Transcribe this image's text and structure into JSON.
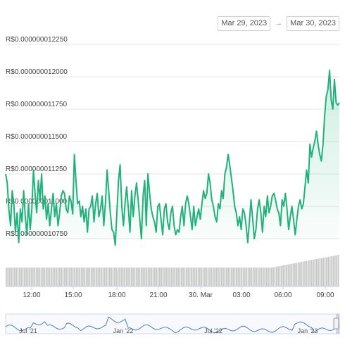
{
  "range": {
    "from": "Mar 29, 2023",
    "to": "Mar 30, 2023",
    "arrow": "→"
  },
  "colors": {
    "line": "#1fb27a",
    "area": "#1fb27a",
    "volume": "#c8c8c8",
    "navigator": "#4a7dc4",
    "grid": "#e6e6e6"
  },
  "chart_data": {
    "type": "area",
    "currency_prefix": "R$",
    "y_ticks": [
      "R$0.000000012250",
      "R$0.000000012000",
      "R$0.000000011750",
      "R$0.000000011500",
      "R$0.000000011250",
      "R$0.000000011000",
      "R$0.000000010750"
    ],
    "ylim": [
      1.075e-08,
      1.225e-08
    ],
    "x_ticks": [
      "12:00",
      "15:00",
      "18:00",
      "21:00",
      "30. Mar",
      "03:00",
      "06:00",
      "09:00"
    ],
    "series": [
      {
        "values": [
          1.125e-08,
          1.118e-08,
          1.098e-08,
          1.085e-08,
          1.112e-08,
          1.102e-08,
          1.08e-08,
          1.095e-08,
          1.072e-08,
          1.098e-08,
          1.088e-08,
          1.112e-08,
          1.092e-08,
          1.078e-08,
          1.102e-08,
          1.082e-08,
          1.098e-08,
          1.128e-08,
          1.11e-08,
          1.095e-08,
          1.12e-08,
          1.105e-08,
          1.125e-08,
          1.098e-08,
          1.108e-08,
          1.09e-08,
          1.102e-08,
          1.085e-08,
          1.098e-08,
          1.11e-08,
          1.092e-08,
          1.102e-08,
          1.085e-08,
          1.095e-08,
          1.108e-08,
          1.112e-08,
          1.11e-08,
          1.098e-08,
          1.095e-08,
          1.108e-08,
          1.104e-08,
          1.094e-08,
          1.14e-08,
          1.12e-08,
          1.102e-08,
          1.104e-08,
          1.092e-08,
          1.1e-08,
          1.088e-08,
          1.098e-08,
          1.08e-08,
          1.098e-08,
          1.1e-08,
          1.108e-08,
          1.088e-08,
          1.102e-08,
          1.11e-08,
          1.092e-08,
          1.098e-08,
          1.108e-08,
          1.085e-08,
          1.102e-08,
          1.128e-08,
          1.112e-08,
          1.095e-08,
          1.082e-08,
          1.08e-08,
          1.07e-08,
          1.095e-08,
          1.12e-08,
          1.132e-08,
          1.1e-08,
          1.085e-08,
          1.102e-08,
          1.115e-08,
          1.098e-08,
          1.08e-08,
          1.112e-08,
          1.092e-08,
          1.108e-08,
          1.118e-08,
          1.105e-08,
          1.09e-08,
          1.075e-08,
          1.108e-08,
          1.12e-08,
          1.085e-08,
          1.125e-08,
          1.11e-08,
          1.098e-08,
          1.092e-08,
          1.088e-08,
          1.08e-08,
          1.1e-08,
          1.102e-08,
          1.09e-08,
          1.078e-08,
          1.098e-08,
          1.102e-08,
          1.088e-08,
          1.082e-08,
          1.095e-08,
          1.1e-08,
          1.085e-08,
          1.078e-08,
          1.082e-08,
          1.08e-08,
          1.092e-08,
          1.1e-08,
          1.085e-08,
          1.102e-08,
          1.108e-08,
          1.102e-08,
          1.092e-08,
          1.082e-08,
          1.1e-08,
          1.085e-08,
          1.092e-08,
          1.098e-08,
          1.09e-08,
          1.102e-08,
          1.112e-08,
          1.106e-08,
          1.11e-08,
          1.125e-08,
          1.118e-08,
          1.105e-08,
          1.1e-08,
          1.092e-08,
          1.088e-08,
          1.102e-08,
          1.098e-08,
          1.112e-08,
          1.106e-08,
          1.125e-08,
          1.13e-08,
          1.14e-08,
          1.132e-08,
          1.122e-08,
          1.112e-08,
          1.1e-08,
          1.095e-08,
          1.085e-08,
          1.092e-08,
          1.082e-08,
          1.098e-08,
          1.095e-08,
          1.085e-08,
          1.072e-08,
          1.088e-08,
          1.105e-08,
          1.09e-08,
          1.075e-08,
          1.082e-08,
          1.098e-08,
          1.105e-08,
          1.095e-08,
          1.08e-08,
          1.1e-08,
          1.092e-08,
          1.108e-08,
          1.095e-08,
          1.1e-08,
          1.108e-08,
          1.11e-08,
          1.105e-08,
          1.098e-08,
          1.095e-08,
          1.085e-08,
          1.105e-08,
          1.1e-08,
          1.11e-08,
          1.098e-08,
          1.082e-08,
          1.092e-08,
          1.1e-08,
          1.09e-08,
          1.078e-08,
          1.09e-08,
          1.1e-08,
          1.105e-08,
          1.098e-08,
          1.102e-08,
          1.115e-08,
          1.128e-08,
          1.118e-08,
          1.148e-08,
          1.138e-08,
          1.145e-08,
          1.15e-08,
          1.158e-08,
          1.148e-08,
          1.14e-08,
          1.135e-08,
          1.148e-08,
          1.17e-08,
          1.185e-08,
          1.19e-08,
          1.205e-08,
          1.182e-08,
          1.175e-08,
          1.198e-08,
          1.18e-08,
          1.178e-08,
          1.18e-08
        ]
      }
    ],
    "volume_ramp": [
      0.6,
      1.0
    ],
    "navigator_ticks": [
      "Jul '21",
      "Jan '22",
      "Jul '22",
      "Jan '23"
    ]
  }
}
